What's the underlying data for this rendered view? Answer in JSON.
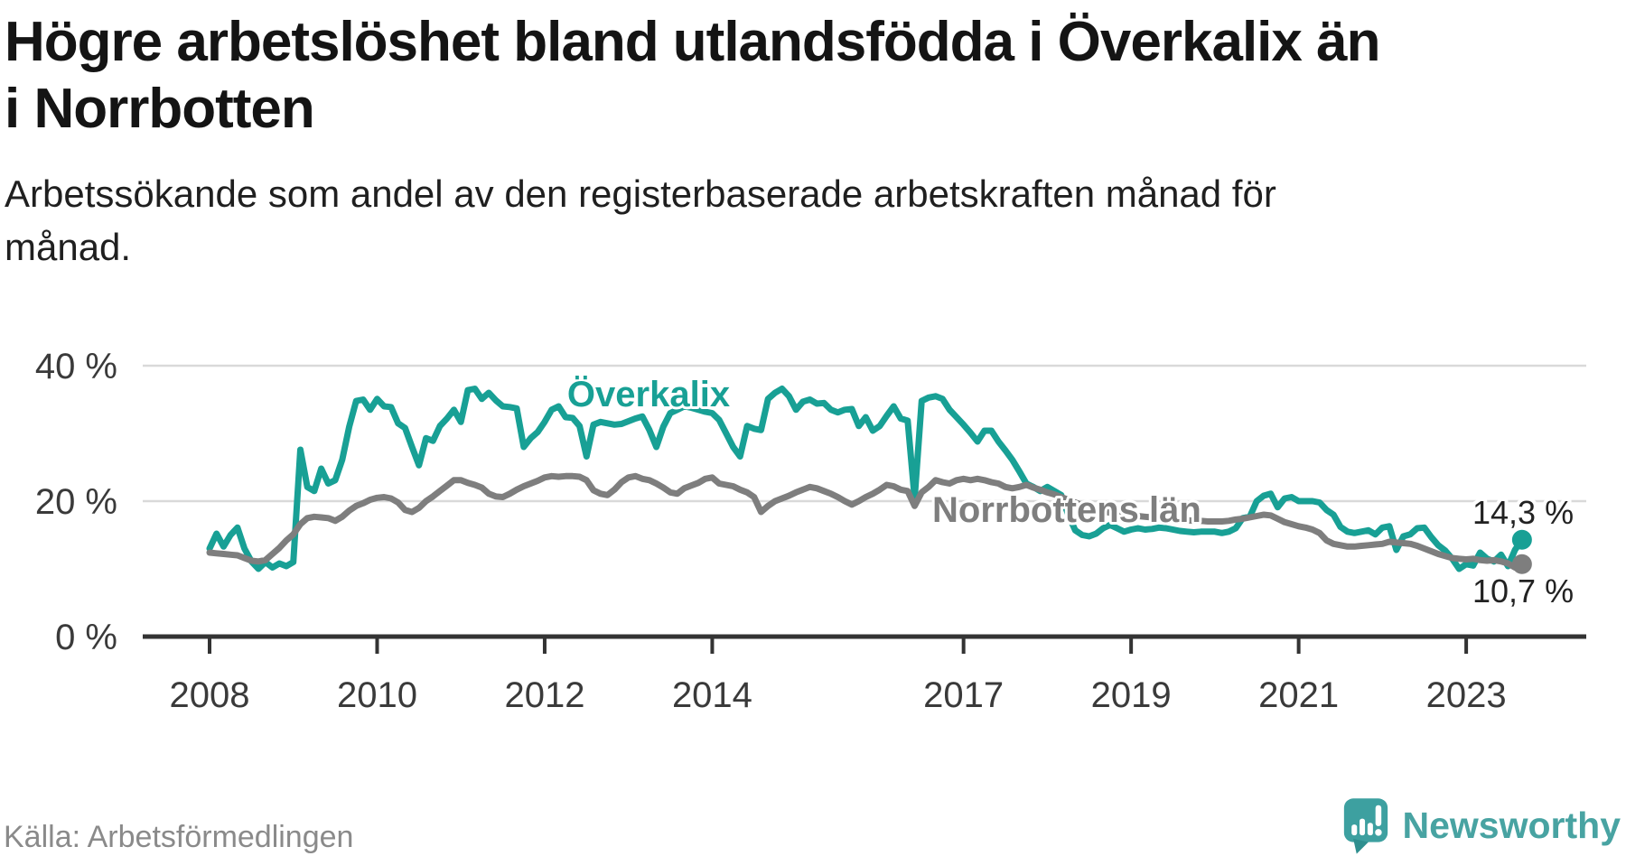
{
  "title_lines": [
    "Högre arbetslöshet bland utlandsfödda i Överkalix än",
    "i Norrbotten"
  ],
  "subtitle_lines": [
    "Arbetssökande som andel av den registerbaserade arbetskraften månad för",
    "månad."
  ],
  "source": "Källa: Arbetsförmedlingen",
  "branding": {
    "name": "Newsworthy"
  },
  "colors": {
    "accent_teal": "#18a095",
    "series_gray": "#7e7e7e",
    "title_text": "#141414",
    "body_text": "#1f1f1f",
    "axis_text": "#3a3a3a",
    "grid_line": "#d9d9d9",
    "axis_line": "#333333",
    "end_label_text": "#222222",
    "source_text": "#8a8a8a",
    "brand_teal": "#3da0a0",
    "brand_teal_dark": "#2e8f8f",
    "brand_text_teal": "#48a3a2"
  },
  "chart_data": {
    "type": "line",
    "title": "Högre arbetslöshet bland utlandsfödda i Överkalix än i Norrbotten",
    "subtitle": "Arbetssökande som andel av den registerbaserade arbetskraften månad för månad.",
    "x_unit": "month",
    "x_start": "2008-01",
    "x_end": "2023-09",
    "grid": "horizontal",
    "ylim": [
      0,
      43
    ],
    "y_ticks": [
      {
        "value": 0,
        "label": "0 %"
      },
      {
        "value": 20,
        "label": "20 %"
      },
      {
        "value": 40,
        "label": "40 %"
      }
    ],
    "x_tick_years": [
      2008,
      2010,
      2012,
      2014,
      2017,
      2019,
      2021,
      2023
    ],
    "x_tick_labels": [
      "2008",
      "2010",
      "2012",
      "2014",
      "2017",
      "2019",
      "2021",
      "2023"
    ],
    "series": [
      {
        "name": "Överkalix",
        "color_key": "accent_teal",
        "color": "#18a095",
        "end_label": "14,3 %",
        "last_value": 14.3,
        "values": [
          13.0,
          15.2,
          13.3,
          15.0,
          16.1,
          13.0,
          11.1,
          10.0,
          11.0,
          10.2,
          10.8,
          10.4,
          11.0,
          27.6,
          22.1,
          21.5,
          24.8,
          22.6,
          23.1,
          26.1,
          31.0,
          34.8,
          35.0,
          33.5,
          35.1,
          34.0,
          33.9,
          31.5,
          30.8,
          28.0,
          25.3,
          29.3,
          28.9,
          31.1,
          32.2,
          33.5,
          31.7,
          36.4,
          36.6,
          35.1,
          36.0,
          34.9,
          34.0,
          33.9,
          33.7,
          28.0,
          29.3,
          30.2,
          31.7,
          33.5,
          34.0,
          32.4,
          32.3,
          31.1,
          26.6,
          31.3,
          31.7,
          31.5,
          31.3,
          31.4,
          31.8,
          32.2,
          32.5,
          30.5,
          28.0,
          31.0,
          33.0,
          33.5,
          34.0,
          33.8,
          33.5,
          33.2,
          33.0,
          32.0,
          30.0,
          28.0,
          26.6,
          31.1,
          30.7,
          30.5,
          35.1,
          36.0,
          36.6,
          35.5,
          33.5,
          34.7,
          35.0,
          34.4,
          34.5,
          33.5,
          33.1,
          33.5,
          33.6,
          31.1,
          32.4,
          30.4,
          31.1,
          32.6,
          34.0,
          32.2,
          31.9,
          20.4,
          34.8,
          35.3,
          35.5,
          35.1,
          33.5,
          32.4,
          31.3,
          30.1,
          28.8,
          30.4,
          30.4,
          28.8,
          27.5,
          26.1,
          24.4,
          22.6,
          22.1,
          21.5,
          22.1,
          21.5,
          20.9,
          18.0,
          15.7,
          15.0,
          14.8,
          15.2,
          16.0,
          16.5,
          16.0,
          15.5,
          15.8,
          16.0,
          15.8,
          15.9,
          16.1,
          16.0,
          15.8,
          15.6,
          15.5,
          15.4,
          15.5,
          15.5,
          15.5,
          15.3,
          15.5,
          16.0,
          17.5,
          17.7,
          20.0,
          20.8,
          21.1,
          19.1,
          20.4,
          20.6,
          20.0,
          20.0,
          20.0,
          19.8,
          18.7,
          18.0,
          16.2,
          15.5,
          15.3,
          15.5,
          15.7,
          15.1,
          16.1,
          16.3,
          12.8,
          14.8,
          15.1,
          16.0,
          16.1,
          14.7,
          13.5,
          12.7,
          11.5,
          10.0,
          10.7,
          10.5,
          12.4,
          11.5,
          11.1,
          12.1,
          10.4,
          12.8,
          14.3
        ]
      },
      {
        "name": "Norrbottens län",
        "color_key": "series_gray",
        "color": "#7e7e7e",
        "end_label": "10,7 %",
        "last_value": 10.7,
        "values": [
          12.4,
          12.3,
          12.2,
          12.1,
          12.0,
          11.6,
          11.2,
          11.1,
          11.3,
          12.2,
          13.1,
          14.2,
          15.1,
          16.6,
          17.5,
          17.7,
          17.6,
          17.5,
          17.1,
          17.7,
          18.6,
          19.3,
          19.7,
          20.2,
          20.5,
          20.6,
          20.4,
          19.8,
          18.7,
          18.4,
          19.0,
          20.0,
          20.7,
          21.5,
          22.3,
          23.1,
          23.1,
          22.7,
          22.4,
          22.0,
          21.1,
          20.7,
          20.6,
          21.1,
          21.7,
          22.2,
          22.6,
          23.0,
          23.5,
          23.7,
          23.6,
          23.7,
          23.7,
          23.6,
          23.1,
          21.6,
          21.1,
          20.9,
          21.7,
          22.8,
          23.5,
          23.7,
          23.3,
          23.1,
          22.6,
          22.0,
          21.3,
          21.1,
          21.9,
          22.3,
          22.7,
          23.3,
          23.5,
          22.6,
          22.4,
          22.2,
          21.7,
          21.3,
          20.6,
          18.4,
          19.3,
          20.0,
          20.4,
          20.8,
          21.3,
          21.7,
          22.1,
          21.9,
          21.5,
          21.1,
          20.6,
          20.0,
          19.5,
          20.0,
          20.6,
          21.1,
          21.7,
          22.4,
          22.2,
          21.7,
          21.5,
          19.3,
          21.3,
          22.1,
          23.1,
          22.8,
          22.6,
          23.1,
          23.3,
          23.1,
          23.3,
          23.1,
          22.8,
          22.6,
          22.1,
          21.9,
          22.1,
          22.4,
          22.0,
          21.7,
          21.3,
          21.0,
          20.6,
          20.2,
          19.8,
          19.4,
          19.0,
          18.7,
          18.5,
          18.3,
          18.1,
          18.0,
          17.9,
          17.8,
          17.7,
          17.6,
          17.5,
          17.4,
          17.3,
          17.2,
          17.2,
          17.1,
          17.1,
          17.0,
          17.0,
          17.0,
          17.1,
          17.3,
          17.4,
          17.6,
          17.8,
          18.0,
          17.9,
          17.4,
          16.9,
          16.6,
          16.3,
          16.1,
          15.8,
          15.3,
          14.2,
          13.7,
          13.5,
          13.3,
          13.3,
          13.4,
          13.5,
          13.6,
          13.7,
          14.0,
          13.9,
          13.8,
          13.7,
          13.4,
          13.0,
          12.6,
          12.2,
          11.9,
          11.6,
          11.5,
          11.4,
          11.5,
          11.3,
          11.2,
          11.3,
          11.1,
          10.8,
          10.2,
          10.7
        ]
      }
    ]
  }
}
